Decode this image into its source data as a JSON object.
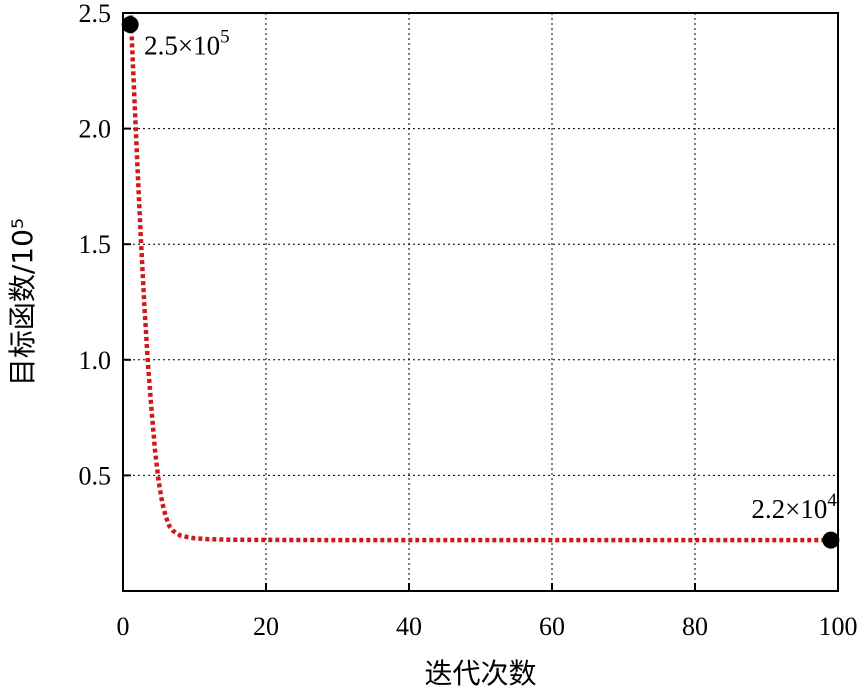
{
  "chart_data": {
    "type": "line",
    "xlabel": "迭代次数",
    "ylabel": "目标函数/10⁵",
    "xlim": [
      0,
      100
    ],
    "ylim": [
      0,
      2.5
    ],
    "xticks": [
      0,
      20,
      40,
      60,
      80,
      100
    ],
    "xtick_labels": [
      "0",
      "20",
      "40",
      "60",
      "80",
      "100"
    ],
    "yticks": [
      0.5,
      1.0,
      1.5,
      2.0,
      2.5
    ],
    "ytick_labels": [
      "0.5",
      "1.0",
      "1.5",
      "2.0",
      "2.5"
    ],
    "grid": true,
    "series": [
      {
        "color": "#d0191e",
        "line_style": "dotted",
        "x": [
          1,
          1.5,
          2,
          2.5,
          3,
          3.5,
          4,
          4.5,
          5,
          5.5,
          6,
          6.5,
          7,
          8,
          9,
          10,
          12,
          15,
          20,
          30,
          40,
          50,
          60,
          70,
          80,
          90,
          99
        ],
        "y": [
          2.55,
          2.2,
          1.85,
          1.52,
          1.23,
          0.98,
          0.78,
          0.6,
          0.47,
          0.38,
          0.32,
          0.28,
          0.26,
          0.24,
          0.233,
          0.228,
          0.224,
          0.222,
          0.221,
          0.22,
          0.22,
          0.22,
          0.22,
          0.22,
          0.22,
          0.22,
          0.22
        ]
      }
    ],
    "markers": [
      {
        "x": 1,
        "y": 2.45,
        "color": "#000000",
        "label_mantissa": "2.5×10",
        "label_exponent": "5",
        "label_position": "below-right"
      },
      {
        "x": 99,
        "y": 0.22,
        "color": "#000000",
        "label_mantissa": "2.2×10",
        "label_exponent": "4",
        "label_position": "above-left"
      }
    ]
  }
}
